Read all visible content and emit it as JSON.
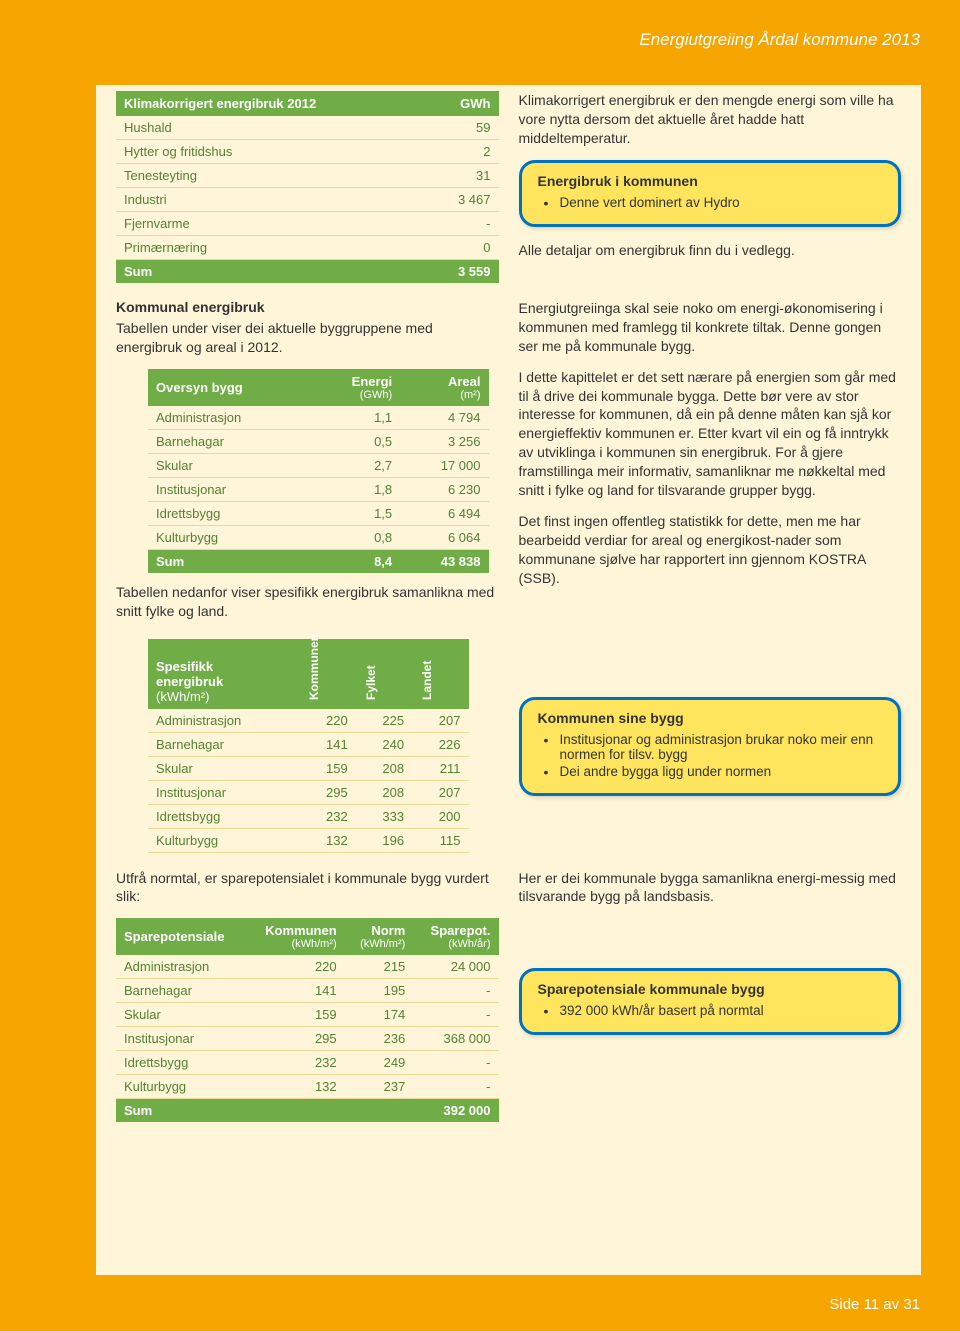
{
  "header": {
    "title": "Energiutgreiing Årdal kommune 2013"
  },
  "footer": {
    "text": "Side 11 av 31"
  },
  "table1": {
    "header_left": "Klimakorrigert energibruk 2012",
    "header_right": "GWh",
    "rows": [
      {
        "label": "Hushald",
        "val": "59"
      },
      {
        "label": "Hytter og fritidshus",
        "val": "2"
      },
      {
        "label": "Tenesteyting",
        "val": "31"
      },
      {
        "label": "Industri",
        "val": "3 467"
      },
      {
        "label": "Fjernvarme",
        "val": "-"
      },
      {
        "label": "Primærnæring",
        "val": "0"
      }
    ],
    "sum_label": "Sum",
    "sum_val": "3 559"
  },
  "right1": {
    "p1": "Klimakorrigert energibruk er den mengde energi som ville ha vore nytta dersom det aktuelle året hadde hatt middeltemperatur.",
    "callout_title": "Energibruk i kommunen",
    "callout_item": "Denne vert dominert av Hydro",
    "p2": "Alle detaljar om energibruk finn du i vedlegg."
  },
  "left2": {
    "head": "Kommunal energibruk",
    "p": "Tabellen under viser dei aktuelle byggruppene med energibruk og areal i 2012."
  },
  "table2": {
    "h1": "Oversyn bygg",
    "h2a": "Energi",
    "h2b": "(GWh)",
    "h3a": "Areal",
    "h3b": "(m²)",
    "rows": [
      {
        "label": "Administrasjon",
        "v1": "1,1",
        "v2": "4 794"
      },
      {
        "label": "Barnehagar",
        "v1": "0,5",
        "v2": "3 256"
      },
      {
        "label": "Skular",
        "v1": "2,7",
        "v2": "17 000"
      },
      {
        "label": "Institusjonar",
        "v1": "1,8",
        "v2": "6 230"
      },
      {
        "label": "Idrettsbygg",
        "v1": "1,5",
        "v2": "6 494"
      },
      {
        "label": "Kulturbygg",
        "v1": "0,8",
        "v2": "6 064"
      }
    ],
    "sum_label": "Sum",
    "sum_v1": "8,4",
    "sum_v2": "43 838"
  },
  "left2b": {
    "p": "Tabellen nedanfor viser spesifikk energibruk samanlikna med snitt fylke og land."
  },
  "right2": {
    "p1": "Energiutgreiinga skal seie noko om energi-økonomisering i kommunen med framlegg til konkrete tiltak. Denne gongen ser me på kommunale bygg.",
    "p2": "I dette kapittelet er det sett nærare på energien som går med til å drive dei kommunale bygga. Dette bør vere av stor interesse for kommunen, då ein på denne måten kan sjå kor energieffektiv kommunen er. Etter kvart vil ein og få inntrykk av utviklinga i kommunen sin energibruk. For å gjere framstillinga meir informativ, samanliknar me nøkkeltal med snitt i fylke og land for tilsvarande grupper bygg.",
    "p3": "Det finst ingen offentleg statistikk for dette, men me har bearbeidd verdiar for areal og energikost-nader som kommunane sjølve har rapportert inn gjennom KOSTRA (SSB)."
  },
  "table3": {
    "h1a": "Spesifikk",
    "h1b": "energibruk",
    "h1c": "(kWh/m²)",
    "h2": "Kommunen",
    "h3": "Fylket",
    "h4": "Landet",
    "rows": [
      {
        "label": "Administrasjon",
        "v1": "220",
        "v2": "225",
        "v3": "207"
      },
      {
        "label": "Barnehagar",
        "v1": "141",
        "v2": "240",
        "v3": "226"
      },
      {
        "label": "Skular",
        "v1": "159",
        "v2": "208",
        "v3": "211"
      },
      {
        "label": "Institusjonar",
        "v1": "295",
        "v2": "208",
        "v3": "207"
      },
      {
        "label": "Idrettsbygg",
        "v1": "232",
        "v2": "333",
        "v3": "200"
      },
      {
        "label": "Kulturbygg",
        "v1": "132",
        "v2": "196",
        "v3": "115"
      }
    ]
  },
  "right3": {
    "callout_title": "Kommunen sine bygg",
    "items": [
      "Institusjonar og administrasjon brukar noko meir enn normen for tilsv. bygg",
      "Dei andre bygga ligg under normen"
    ]
  },
  "left4": {
    "p": "Utfrå normtal, er sparepotensialet i kommunale bygg vurdert slik:"
  },
  "table4": {
    "h1": "Sparepotensiale",
    "h2a": "Kommunen",
    "h2b": "(kWh/m²)",
    "h3a": "Norm",
    "h3b": "(kWh/m²)",
    "h4a": "Sparepot.",
    "h4b": "(kWh/år)",
    "rows": [
      {
        "label": "Administrasjon",
        "v1": "220",
        "v2": "215",
        "v3": "24 000"
      },
      {
        "label": "Barnehagar",
        "v1": "141",
        "v2": "195",
        "v3": "-"
      },
      {
        "label": "Skular",
        "v1": "159",
        "v2": "174",
        "v3": "-"
      },
      {
        "label": "Institusjonar",
        "v1": "295",
        "v2": "236",
        "v3": "368 000"
      },
      {
        "label": "Idrettsbygg",
        "v1": "232",
        "v2": "249",
        "v3": "-"
      },
      {
        "label": "Kulturbygg",
        "v1": "132",
        "v2": "237",
        "v3": "-"
      }
    ],
    "sum_label": "Sum",
    "sum_v3": "392 000"
  },
  "right4": {
    "p": "Her er dei kommunale bygga samanlikna energi-messig med tilsvarande bygg på landsbasis.",
    "callout_title": "Sparepotensiale kommunale bygg",
    "item": "392 000 kWh/år basert på normtal"
  },
  "style": {
    "accent_green": "#70ad47",
    "accent_text_green": "#538135",
    "callout_border": "#0070c0",
    "callout_bg": "#ffe55e",
    "page_bg": "#f5a400",
    "content_bg": "#fff6d9"
  }
}
